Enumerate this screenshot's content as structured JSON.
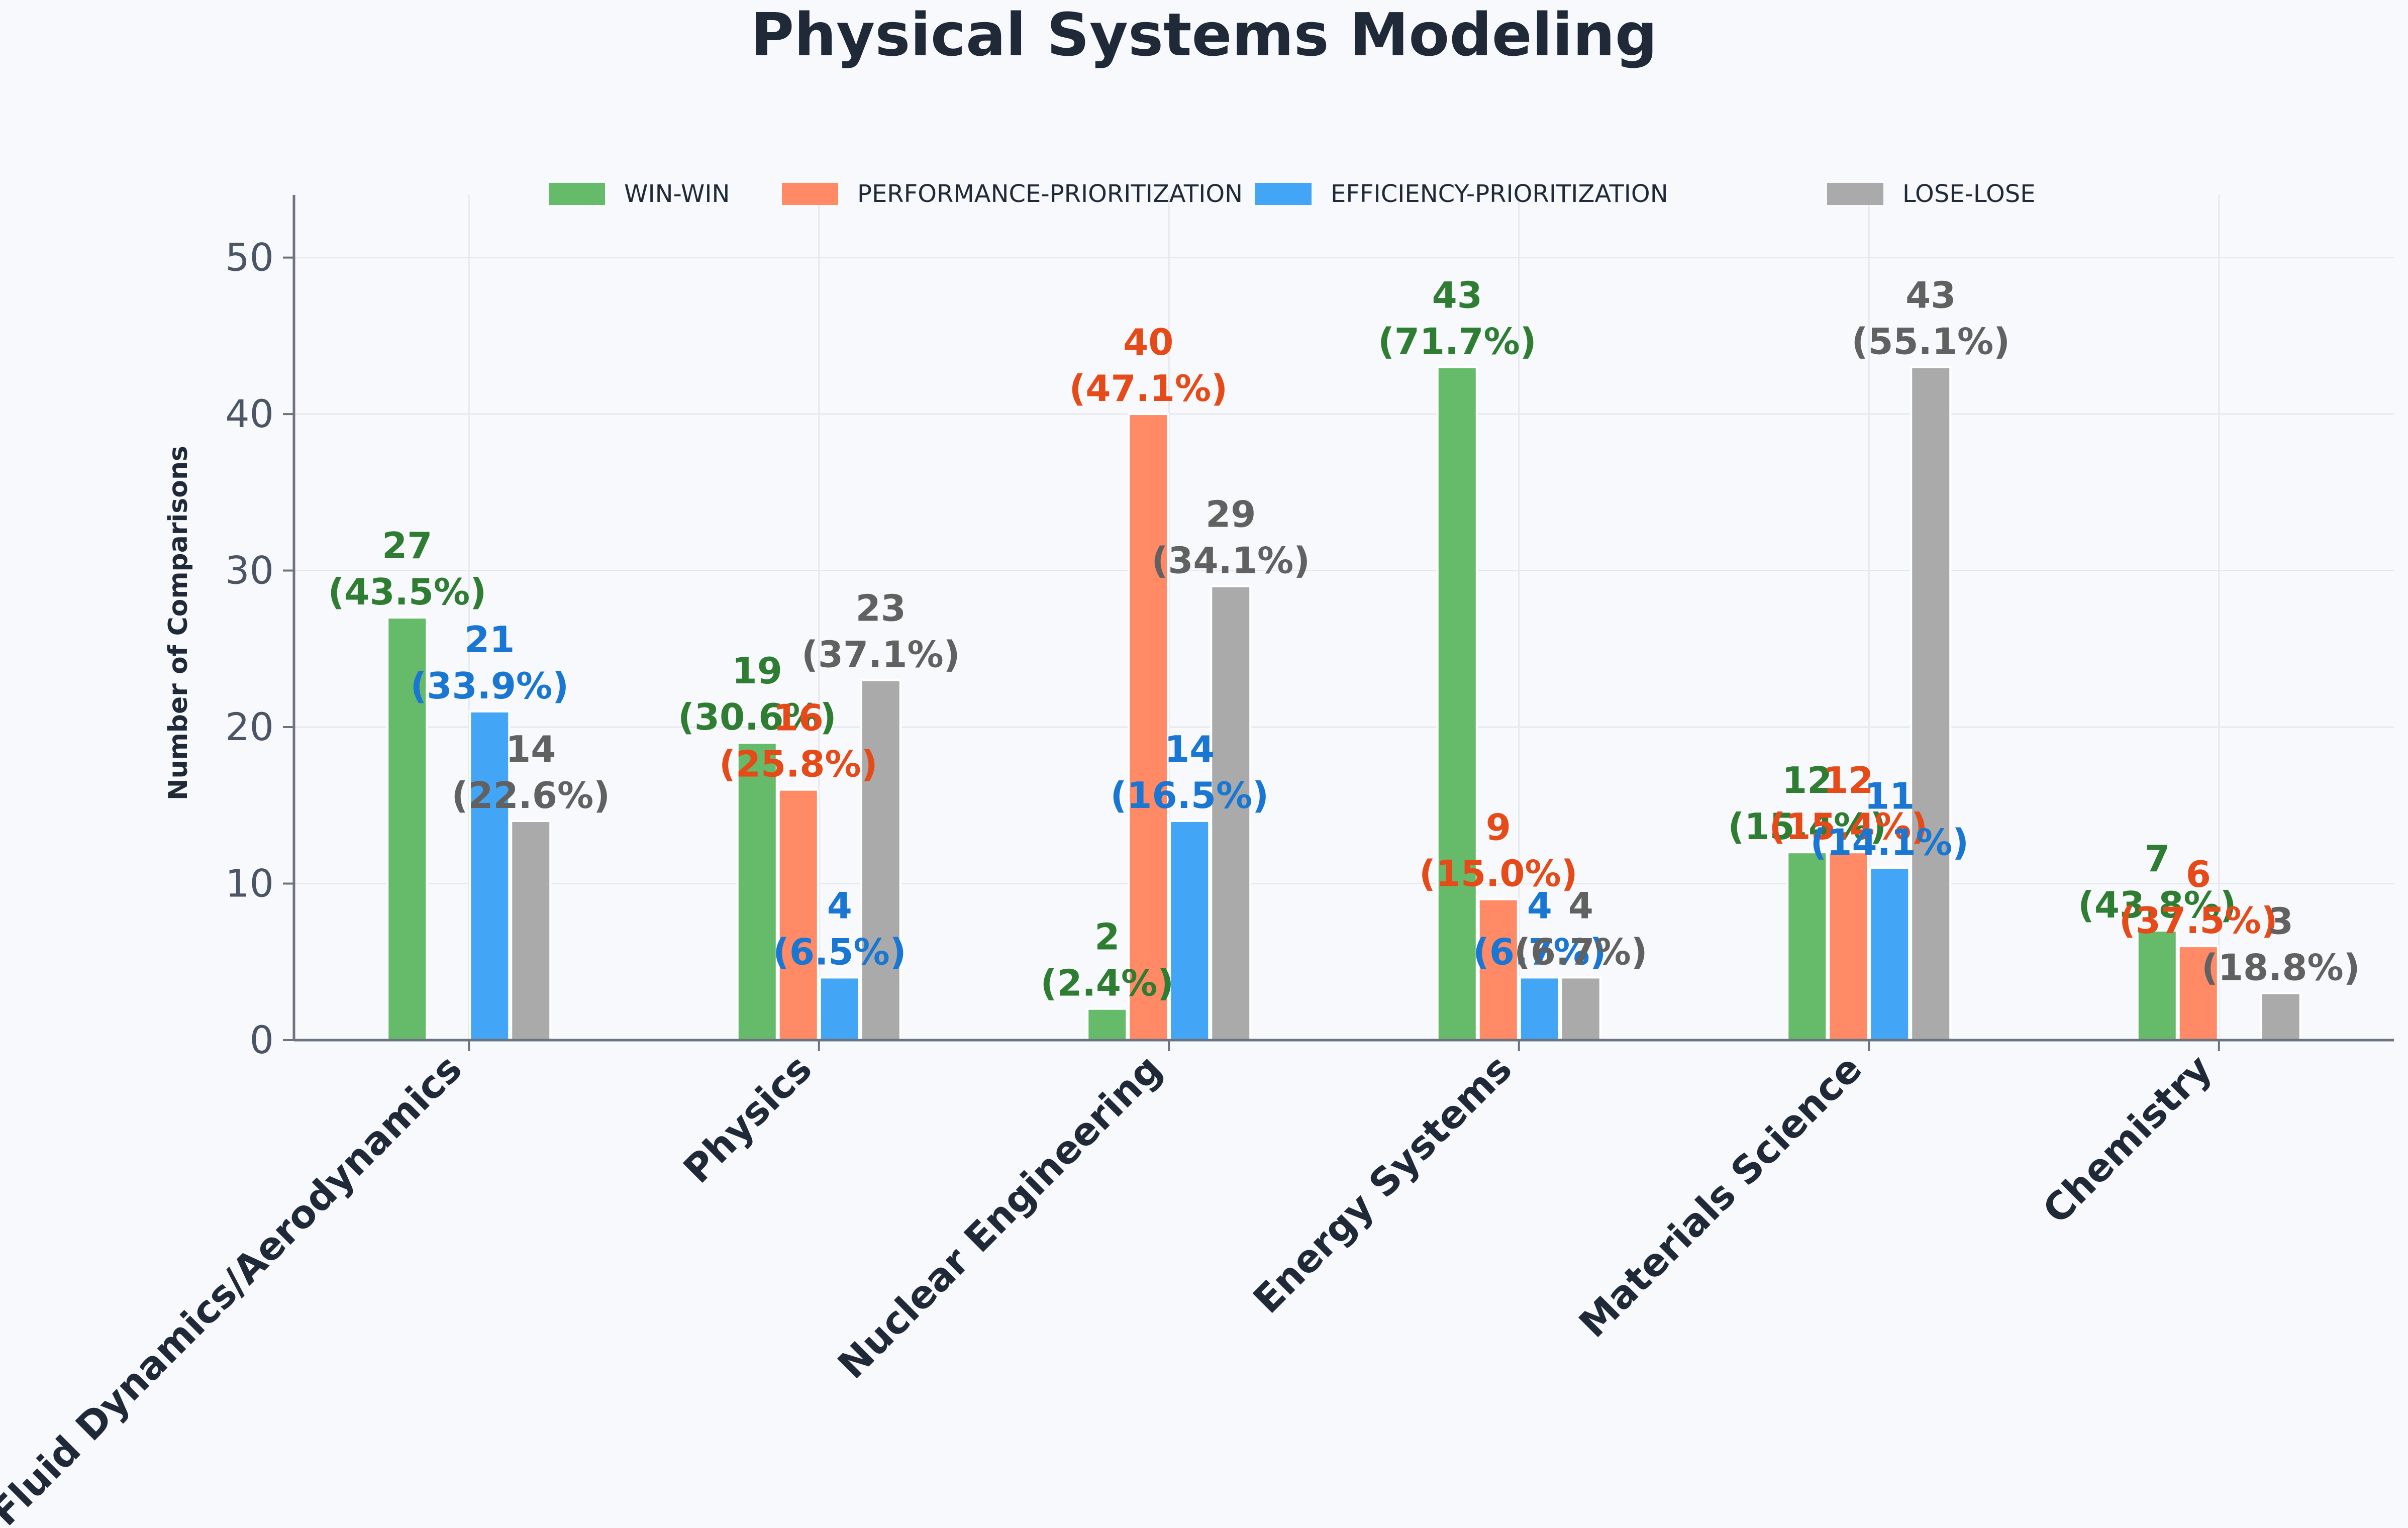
{
  "chart_data": {
    "type": "bar",
    "title": "Physical Systems Modeling",
    "ylabel": "Number of Comparisons",
    "xlabel": "",
    "ylim": [
      0,
      54
    ],
    "yticks": [
      "0",
      "10",
      "20",
      "30",
      "40",
      "50"
    ],
    "ytick_values": [
      0,
      10,
      20,
      30,
      40,
      50
    ],
    "grid": true,
    "legend_position": "top",
    "categories": [
      "Fluid Dynamics/Aerodynamics",
      "Physics",
      "Nuclear Engineering",
      "Energy Systems",
      "Materials Science",
      "Chemistry"
    ],
    "series": [
      {
        "name": "WIN-WIN",
        "color": "#66bb6a",
        "label_color": "#2e7d32",
        "values": [
          27,
          19,
          2,
          43,
          12,
          7
        ],
        "labels": [
          "27\n(43.5%)",
          "19\n(30.6%)",
          "2\n(2.4%)",
          "43\n(71.7%)",
          "12\n(15.4%)",
          "7\n(43.8%)"
        ]
      },
      {
        "name": "PERFORMANCE-PRIORITIZATION",
        "color": "#ff8a65",
        "label_color": "#e64a19",
        "values": [
          0,
          16,
          40,
          9,
          12,
          6
        ],
        "labels": [
          "",
          "16\n(25.8%)",
          "40\n(47.1%)",
          "9\n(15.0%)",
          "12\n(15.4%)",
          "6\n(37.5%)"
        ]
      },
      {
        "name": "EFFICIENCY-PRIORITIZATION",
        "color": "#42a5f5",
        "label_color": "#1976d2",
        "values": [
          21,
          4,
          14,
          4,
          11,
          0
        ],
        "labels": [
          "21\n(33.9%)",
          "4\n(6.5%)",
          "14\n(16.5%)",
          "4\n(6.7%)",
          "11\n(14.1%)",
          ""
        ]
      },
      {
        "name": "LOSE-LOSE",
        "color": "#aaaaaa",
        "label_color": "#616161",
        "values": [
          14,
          23,
          29,
          4,
          43,
          3
        ],
        "labels": [
          "14\n(22.6%)",
          "23\n(37.1%)",
          "29\n(34.1%)",
          "4\n(6.7%)",
          "43\n(55.1%)",
          "3\n(18.8%)"
        ]
      }
    ]
  }
}
